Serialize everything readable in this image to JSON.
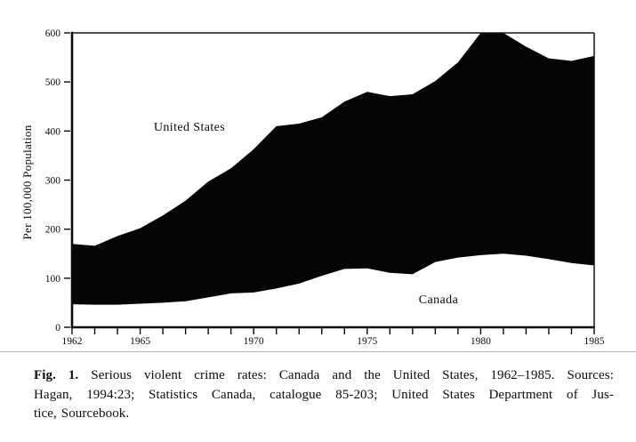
{
  "figure": {
    "y_axis_title": "Per 100,000 Population",
    "series_labels": {
      "us": "United States",
      "canada": "Canada"
    }
  },
  "caption": {
    "fig_label": "Fig. 1.",
    "line1_rest": " Serious violent crime rates: Canada and the United States, 1962–1985. Sources:",
    "line2": "Hagan, 1994:23; Statistics Canada, catalogue 85-203; United States Department of Jus-",
    "line3": "tice, Sourcebook."
  },
  "colors": {
    "ink": "#0b0b0b",
    "area_fill": "#050505",
    "frame": "#151515",
    "divider_rule": "#b5b5b5"
  },
  "chart_data": {
    "type": "area",
    "title": "",
    "xlabel": "",
    "ylabel": "Per 100,000 Population",
    "xlim": [
      1962,
      1985
    ],
    "ylim": [
      0,
      600
    ],
    "y_ticks": [
      0,
      100,
      200,
      300,
      400,
      500,
      600
    ],
    "x_tick_labels": [
      1962,
      1965,
      1970,
      1975,
      1980,
      1985
    ],
    "x_minor_ticks": "every year 1962-1985",
    "grid": false,
    "legend": "in-plot text labels (United States above band, Canada below band)",
    "fill_style": "solid black band between United States curve (top edge) and Canada curve (bottom edge)",
    "x": [
      1962,
      1963,
      1964,
      1965,
      1966,
      1967,
      1968,
      1969,
      1970,
      1971,
      1972,
      1973,
      1974,
      1975,
      1976,
      1977,
      1978,
      1979,
      1980,
      1981,
      1982,
      1983,
      1984,
      1985
    ],
    "series": [
      {
        "name": "United States",
        "values": [
          170,
          166,
          186,
          202,
          228,
          258,
          297,
          324,
          363,
          410,
          415,
          428,
          460,
          480,
          471,
          475,
          502,
          540,
          600,
          600,
          572,
          548,
          543,
          553
        ]
      },
      {
        "name": "Canada",
        "values": [
          47,
          46,
          46,
          48,
          50,
          53,
          61,
          69,
          71,
          79,
          89,
          105,
          119,
          120,
          111,
          108,
          133,
          142,
          147,
          150,
          146,
          139,
          131,
          126
        ]
      }
    ]
  }
}
